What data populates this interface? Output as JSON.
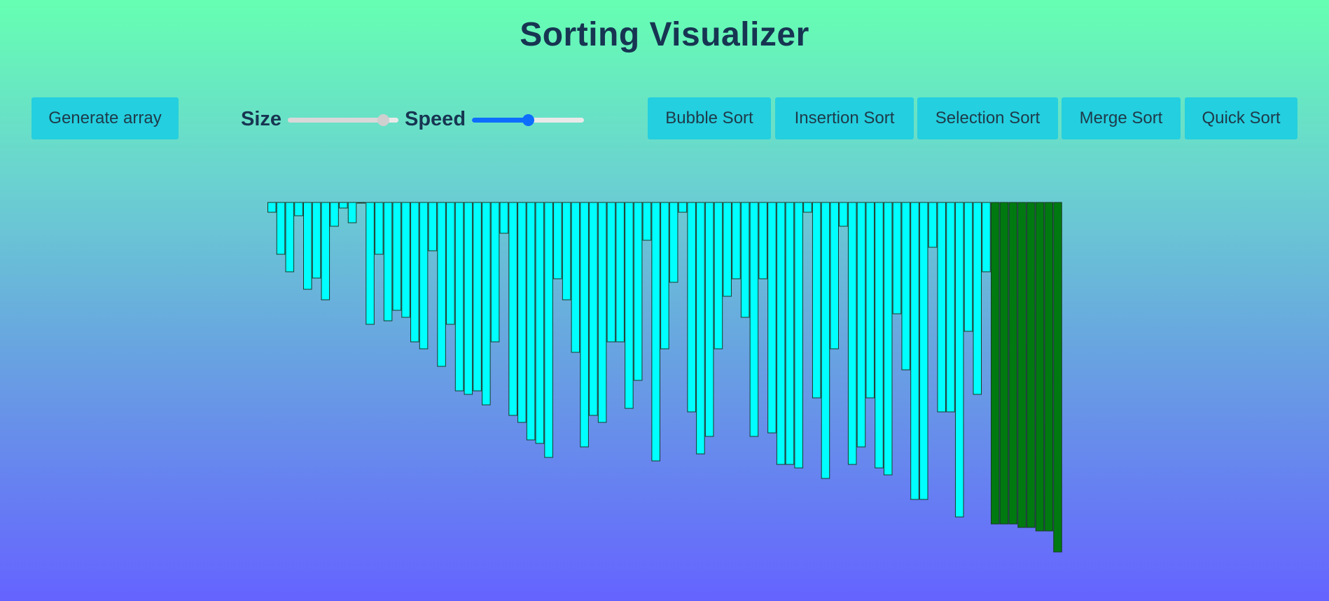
{
  "header": {
    "title": "Sorting Visualizer"
  },
  "controls": {
    "generate_label": "Generate array",
    "size_label": "Size",
    "speed_label": "Speed",
    "size_value": 0.86,
    "speed_value": 0.5,
    "size_color": "#cfcfcf",
    "speed_color": "#0d6efd"
  },
  "algorithms": [
    "Bubble Sort",
    "Insertion Sort",
    "Selection Sort",
    "Merge Sort",
    "Quick Sort"
  ],
  "colors": {
    "unsorted_bar": "#00ffff",
    "sorted_bar": "#007a10",
    "bar_border": "#1a3a2a",
    "button_bg": "#24cfdf"
  },
  "array": {
    "sorted_count": 8,
    "values": [
      14,
      74,
      99,
      19,
      124,
      108,
      139,
      34,
      8,
      29,
      1,
      174,
      74,
      169,
      154,
      164,
      199,
      209,
      69,
      234,
      174,
      269,
      274,
      269,
      289,
      199,
      44,
      304,
      314,
      339,
      344,
      364,
      109,
      139,
      214,
      349,
      304,
      314,
      199,
      199,
      294,
      254,
      54,
      369,
      209,
      114,
      14,
      299,
      359,
      334,
      209,
      134,
      109,
      164,
      334,
      109,
      329,
      374,
      374,
      379,
      14,
      279,
      394,
      209,
      34,
      374,
      349,
      279,
      379,
      389,
      159,
      239,
      424,
      424,
      64,
      299,
      299,
      449,
      184,
      274,
      99,
      459,
      459,
      459,
      464,
      464,
      469,
      469,
      499
    ]
  }
}
